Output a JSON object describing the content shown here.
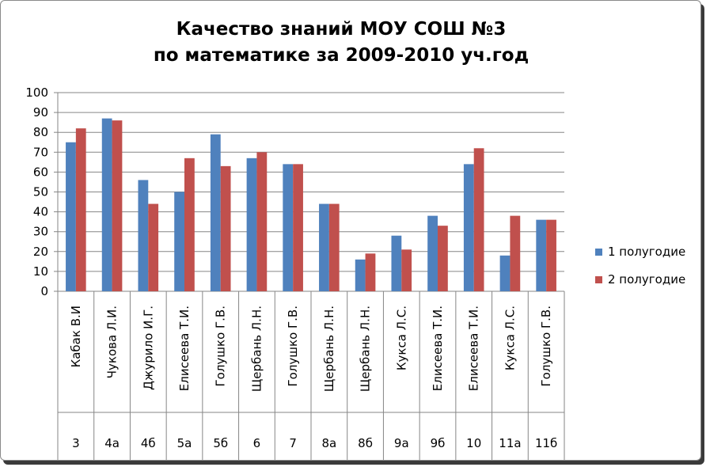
{
  "chart_data": {
    "type": "bar",
    "title": [
      "Качество знаний  МОУ СОШ №3",
      "по математике за 2009-2010 уч.год"
    ],
    "ylim": [
      0,
      100
    ],
    "yticks": [
      0,
      10,
      20,
      30,
      40,
      50,
      60,
      70,
      80,
      90,
      100
    ],
    "grid": true,
    "legend_position": "right",
    "categories": [
      {
        "teacher": "Кабак В.И",
        "class": "3"
      },
      {
        "teacher": "Чукова Л.И.",
        "class": "4а"
      },
      {
        "teacher": "Джурило И.Г.",
        "class": "4б"
      },
      {
        "teacher": "Елисеева Т.И.",
        "class": "5а"
      },
      {
        "teacher": "Голушко Г.В.",
        "class": "5б"
      },
      {
        "teacher": "Щербань Л.Н.",
        "class": "6"
      },
      {
        "teacher": "Голушко Г.В.",
        "class": "7"
      },
      {
        "teacher": "Щербань Л.Н.",
        "class": "8а"
      },
      {
        "teacher": "Щербань Л.Н.",
        "class": "8б"
      },
      {
        "teacher": "Кукса Л.С.",
        "class": "9а"
      },
      {
        "teacher": "Елисеева Т.И.",
        "class": "9б"
      },
      {
        "teacher": "Елисеева Т.И.",
        "class": "10"
      },
      {
        "teacher": "Кукса Л.С.",
        "class": "11а"
      },
      {
        "teacher": "Голушко Г.В.",
        "class": "11б"
      }
    ],
    "series": [
      {
        "name": "1 полугодие",
        "color": "#4f81bd",
        "values": [
          75,
          87,
          56,
          50,
          79,
          67,
          64,
          44,
          16,
          28,
          38,
          64,
          18,
          36
        ]
      },
      {
        "name": "2 полугодие",
        "color": "#c0504d",
        "values": [
          82,
          86,
          44,
          67,
          63,
          70,
          64,
          44,
          19,
          21,
          33,
          72,
          38,
          36
        ]
      }
    ]
  }
}
